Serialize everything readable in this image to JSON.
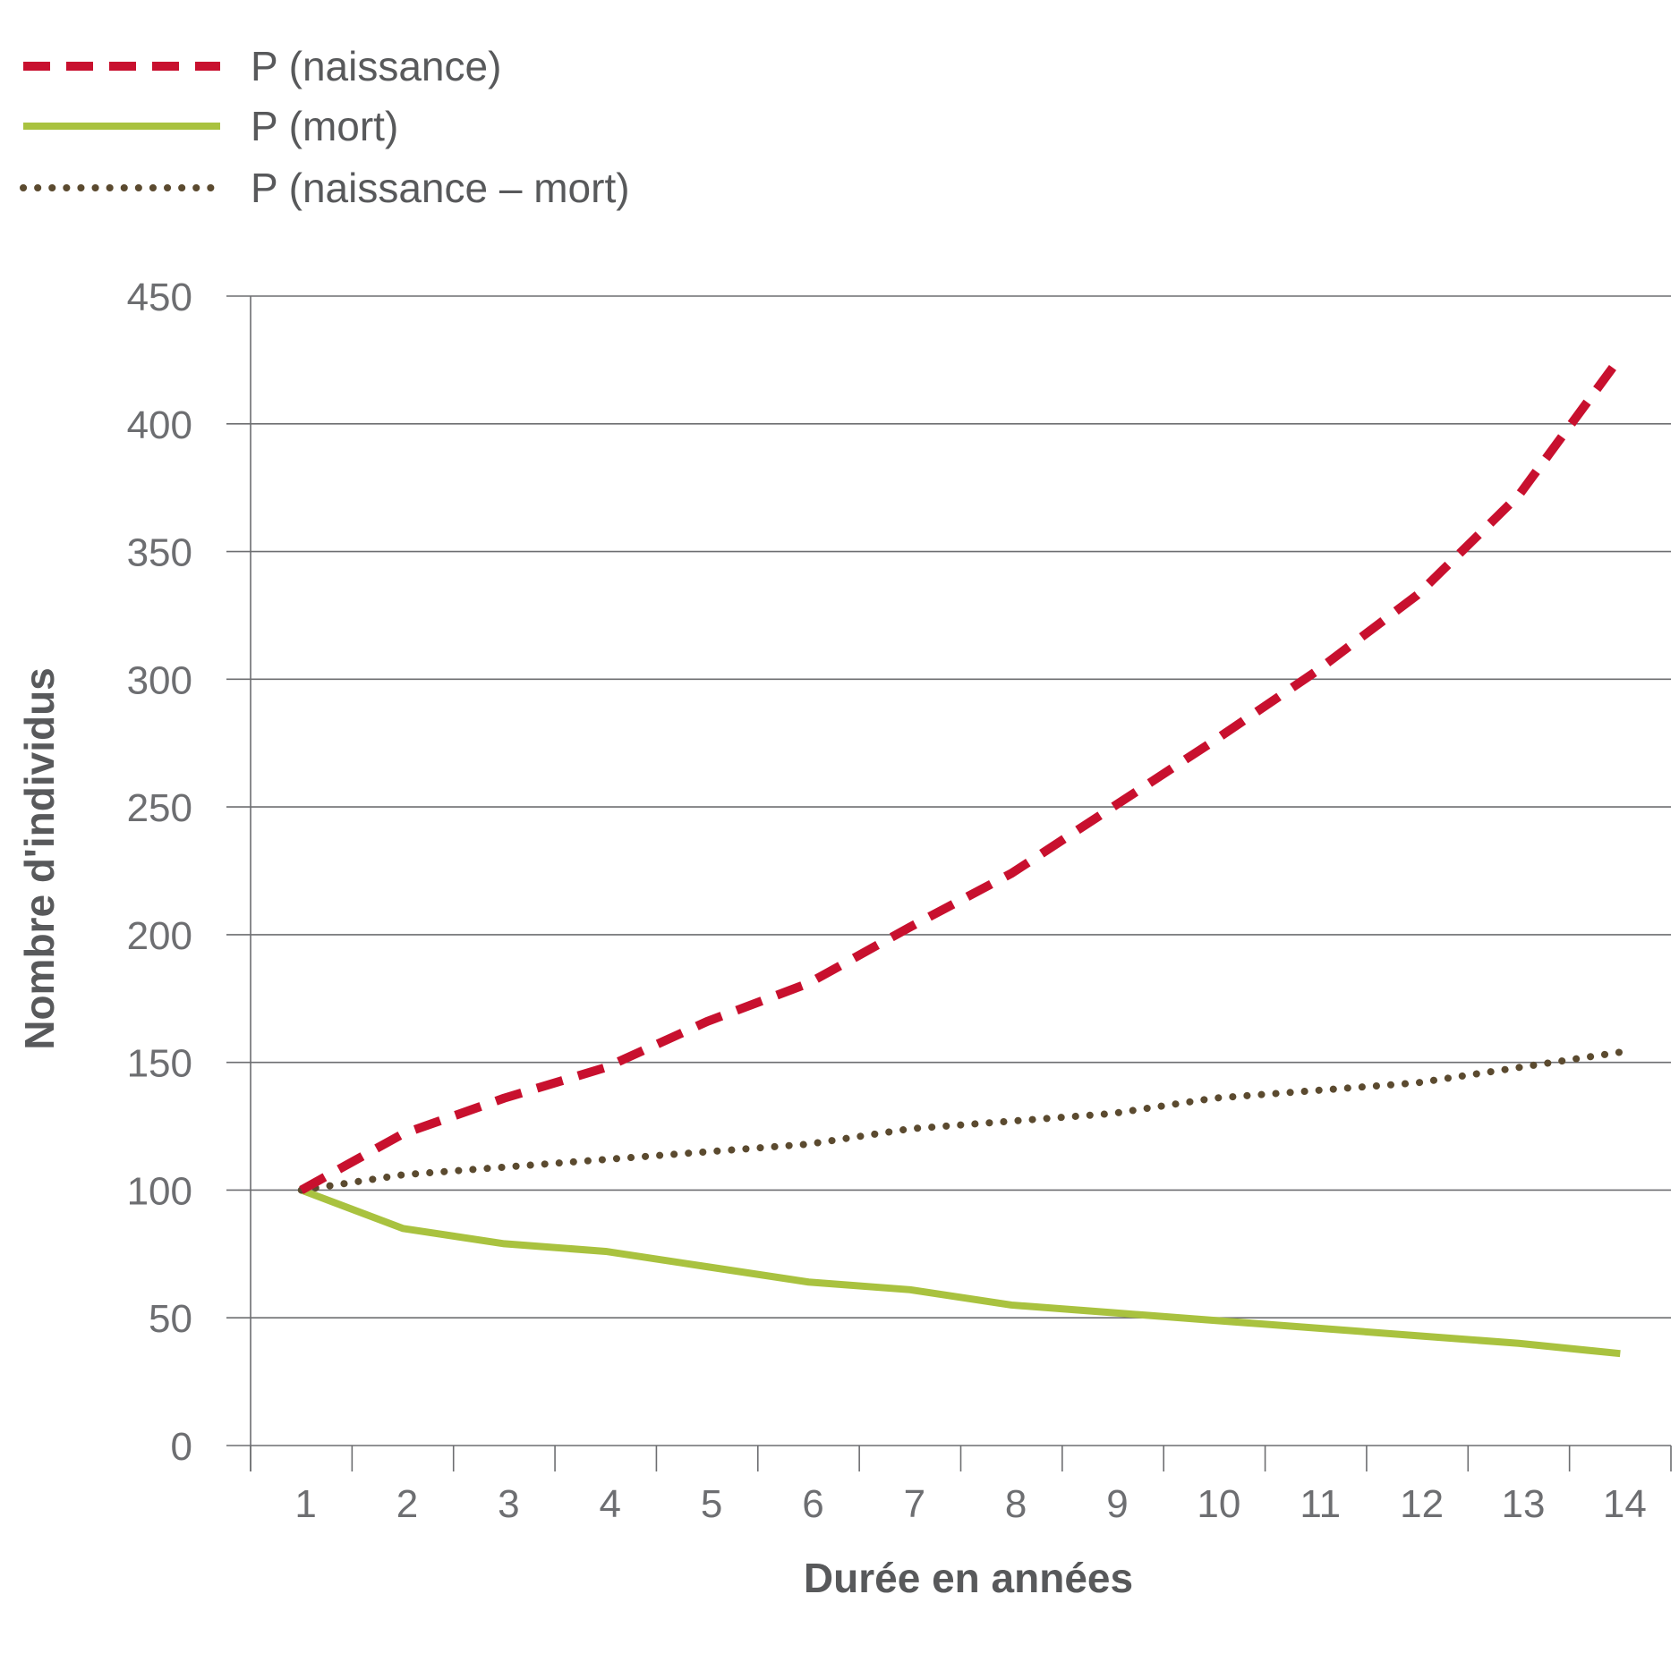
{
  "chart_data": {
    "type": "line",
    "xlabel": "Durée en années",
    "ylabel": "Nombre d'individus",
    "x": [
      1,
      2,
      3,
      4,
      5,
      6,
      7,
      8,
      9,
      10,
      11,
      12,
      13,
      14
    ],
    "x_tick_labels": [
      "1",
      "2",
      "3",
      "4",
      "5",
      "6",
      "7",
      "8",
      "9",
      "10",
      "11",
      "12",
      "13",
      "14"
    ],
    "y_tick_labels": [
      "0",
      "50",
      "100",
      "150",
      "200",
      "250",
      "300",
      "350",
      "400",
      "450"
    ],
    "ylim": [
      0,
      450
    ],
    "grid": "horizontal",
    "legend_position": "top-left",
    "series": [
      {
        "name": "P (naissance)",
        "style": "dashed",
        "color": "#c8102e",
        "values": [
          100,
          122,
          136,
          148,
          166,
          181,
          203,
          224,
          250,
          276,
          303,
          333,
          372,
          426
        ]
      },
      {
        "name": "P (mort)",
        "style": "solid",
        "color": "#a9c23f",
        "values": [
          100,
          85,
          79,
          76,
          70,
          64,
          61,
          55,
          52,
          49,
          46,
          43,
          40,
          36
        ]
      },
      {
        "name": "P (naissance – mort)",
        "style": "dotted",
        "color": "#5b4a2f",
        "values": [
          100,
          106,
          109,
          112,
          115,
          118,
          124,
          127,
          130,
          136,
          139,
          142,
          148,
          154
        ]
      }
    ]
  }
}
